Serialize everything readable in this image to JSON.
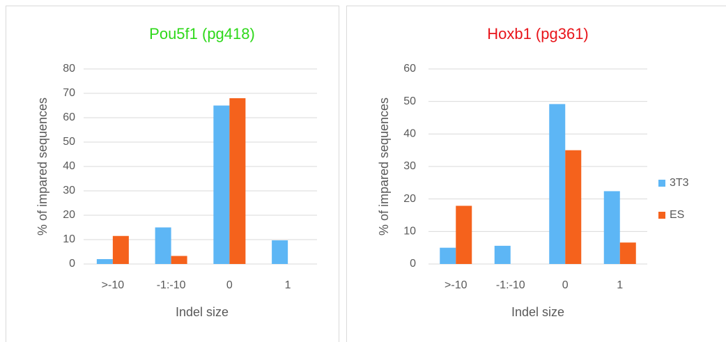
{
  "chart_data": [
    {
      "type": "bar",
      "title": "Pou5f1 (pg418)",
      "title_color": "#2ed81a",
      "xlabel": "Indel size",
      "ylabel": "% of impared sequences",
      "categories": [
        ">-10",
        "-1:-10",
        "0",
        "1"
      ],
      "series": [
        {
          "color": "#5db6f5",
          "values": [
            2,
            15,
            65,
            9.7
          ]
        },
        {
          "color": "#f5621c",
          "values": [
            11.5,
            3.3,
            68,
            0
          ]
        }
      ],
      "ylim": [
        0,
        80
      ],
      "yticks": [
        0,
        10,
        20,
        30,
        40,
        50,
        60,
        70,
        80
      ],
      "grid": true
    },
    {
      "type": "bar",
      "title": "Hoxb1 (pg361)",
      "title_color": "#e8141a",
      "xlabel": "Indel size",
      "ylabel": "% of impared sequences",
      "categories": [
        ">-10",
        "-1:-10",
        "0",
        "1"
      ],
      "series": [
        {
          "name": "3T3",
          "color": "#5db6f5",
          "values": [
            5,
            5.6,
            49.2,
            22.4
          ]
        },
        {
          "name": "ES",
          "color": "#f5621c",
          "values": [
            17.9,
            0,
            35,
            6.6
          ]
        }
      ],
      "ylim": [
        0,
        60
      ],
      "yticks": [
        0,
        10,
        20,
        30,
        40,
        50,
        60
      ],
      "grid": true,
      "legend": "right"
    }
  ]
}
